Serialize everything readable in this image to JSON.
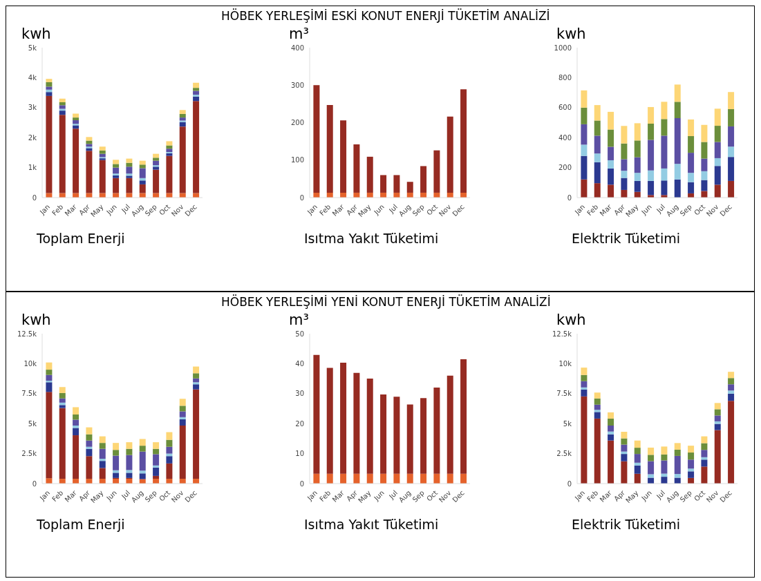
{
  "chart_data": [
    {
      "type": "bar",
      "ylabel": "kwh",
      "xlabel": "Toplam Enerji",
      "stacked": true,
      "categories": [
        "Jan",
        "Feb",
        "Mar",
        "Apr",
        "May",
        "Jun",
        "Jul",
        "Aug",
        "Sep",
        "Oct",
        "Nov",
        "Dec"
      ],
      "ylim": [
        0,
        5000
      ],
      "yticks": [
        0,
        {
          "value": 1000,
          "label": "1k"
        },
        {
          "value": 2000,
          "label": "2k"
        },
        {
          "value": 3000,
          "label": "3k"
        },
        {
          "value": 4000,
          "label": "4k"
        },
        {
          "value": 5000,
          "label": "5k"
        }
      ],
      "series": [
        {
          "color": "#e5622b",
          "values": [
            150,
            150,
            150,
            150,
            150,
            150,
            150,
            150,
            150,
            150,
            150,
            150
          ]
        },
        {
          "color": "#962b22",
          "values": [
            3240,
            2610,
            2150,
            1410,
            1100,
            500,
            500,
            290,
            780,
            1240,
            2220,
            3070
          ]
        },
        {
          "color": "#2b3990",
          "values": [
            130,
            140,
            110,
            90,
            60,
            90,
            80,
            130,
            100,
            90,
            150,
            150
          ]
        },
        {
          "color": "#93cce3",
          "values": [
            80,
            60,
            50,
            50,
            40,
            60,
            70,
            80,
            50,
            40,
            50,
            60
          ]
        },
        {
          "color": "#5b4fa3",
          "values": [
            100,
            120,
            120,
            90,
            110,
            200,
            230,
            330,
            150,
            110,
            100,
            130
          ]
        },
        {
          "color": "#6b8e3b",
          "values": [
            150,
            100,
            90,
            110,
            110,
            120,
            130,
            120,
            100,
            110,
            120,
            100
          ]
        },
        {
          "color": "#fdd676",
          "values": [
            110,
            120,
            130,
            120,
            130,
            140,
            140,
            130,
            130,
            140,
            130,
            170
          ]
        }
      ]
    },
    {
      "type": "bar",
      "title": "HÖBEK YERLEŞİMİ ESKİ KONUT ENERJİ TÜKETİM ANALİZİ",
      "ylabel": "m³",
      "xlabel": "Isıtma Yakıt Tüketimi",
      "stacked": true,
      "categories": [
        "Jan",
        "Feb",
        "Mar",
        "Apr",
        "May",
        "Jun",
        "Jul",
        "Aug",
        "Sep",
        "Oct",
        "Nov",
        "Dec"
      ],
      "ylim": [
        0,
        400
      ],
      "yticks": [
        0,
        100,
        200,
        300,
        400
      ],
      "series": [
        {
          "color": "#e5622b",
          "values": [
            13,
            13,
            13,
            13,
            13,
            13,
            13,
            13,
            13,
            13,
            13,
            13
          ]
        },
        {
          "color": "#962b22",
          "values": [
            287,
            234,
            193,
            129,
            96,
            47,
            47,
            29,
            71,
            113,
            203,
            276
          ]
        }
      ]
    },
    {
      "type": "bar",
      "ylabel": "kwh",
      "xlabel": "Elektrik Tüketimi",
      "stacked": true,
      "categories": [
        "Jan",
        "Feb",
        "Mar",
        "Apr",
        "May",
        "Jun",
        "Jul",
        "Aug",
        "Sep",
        "Oct",
        "Nov",
        "Dec"
      ],
      "ylim": [
        0,
        1000
      ],
      "yticks": [
        0,
        200,
        400,
        600,
        800,
        1000
      ],
      "series": [
        {
          "color": "#962b22",
          "values": [
            121,
            96,
            86,
            51,
            38,
            17,
            17,
            null,
            28,
            44,
            86,
            111
          ]
        },
        {
          "color": "#2b3990",
          "values": [
            157,
            140,
            108,
            80,
            73,
            94,
            97,
            121,
            75,
            73,
            125,
            160
          ]
        },
        {
          "color": "#93cce3",
          "values": [
            75,
            58,
            55,
            48,
            54,
            70,
            80,
            104,
            62,
            59,
            52,
            69
          ]
        },
        {
          "color": "#5b4fa3",
          "values": [
            136,
            119,
            90,
            77,
            104,
            204,
            219,
            305,
            134,
            84,
            108,
            135
          ]
        },
        {
          "color": "#6b8e3b",
          "values": [
            111,
            101,
            115,
            105,
            112,
            108,
            111,
            109,
            111,
            111,
            108,
            115
          ]
        },
        {
          "color": "#fdd676",
          "values": [
            115,
            103,
            118,
            117,
            115,
            111,
            115,
            115,
            111,
            114,
            114,
            114
          ]
        }
      ]
    },
    {
      "type": "bar",
      "ylabel": "kwh",
      "xlabel": "Toplam Enerji",
      "stacked": true,
      "categories": [
        "Jan",
        "Feb",
        "Mar",
        "Apr",
        "May",
        "Jun",
        "Jul",
        "Aug",
        "Sep",
        "Oct",
        "Nov",
        "Dec"
      ],
      "ylim": [
        0,
        12500
      ],
      "yticks": [
        0,
        {
          "value": 2500,
          "label": "2.5k"
        },
        {
          "value": 5000,
          "label": "5k"
        },
        {
          "value": 7500,
          "label": "7.5k"
        },
        {
          "value": 10000,
          "label": "10k"
        },
        {
          "value": 12500,
          "label": "12.5k"
        }
      ],
      "series": [
        {
          "color": "#e5622b",
          "values": [
            450,
            400,
            400,
            400,
            400,
            400,
            400,
            350,
            400,
            400,
            400,
            400
          ]
        },
        {
          "color": "#962b22",
          "values": [
            7190,
            5900,
            3630,
            1890,
            900,
            70,
            70,
            30,
            240,
            1280,
            4440,
            7450
          ]
        },
        {
          "color": "#2b3990",
          "values": [
            810,
            250,
            610,
            610,
            590,
            430,
            430,
            470,
            700,
            610,
            520,
            430
          ]
        },
        {
          "color": "#93cce3",
          "values": [
            130,
            200,
            200,
            170,
            180,
            210,
            230,
            230,
            170,
            210,
            180,
            170
          ]
        },
        {
          "color": "#5b4fa3",
          "values": [
            480,
            350,
            490,
            520,
            830,
            1220,
            1250,
            1590,
            940,
            570,
            480,
            320
          ]
        },
        {
          "color": "#6b8e3b",
          "values": [
            440,
            450,
            430,
            520,
            490,
            480,
            520,
            490,
            450,
            580,
            470,
            430
          ]
        },
        {
          "color": "#fdd676",
          "values": [
            600,
            500,
            610,
            580,
            550,
            580,
            550,
            560,
            550,
            640,
            580,
            560
          ]
        }
      ]
    },
    {
      "type": "bar",
      "title": "HÖBEK YERLEŞİMİ YENİ KONUT ENERJİ TÜKETİM ANALİZİ",
      "ylabel": "m³",
      "xlabel": "Isıtma Yakıt Tüketimi",
      "stacked": true,
      "categories": [
        "Jan",
        "Feb",
        "Mar",
        "Apr",
        "May",
        "Jun",
        "Jul",
        "Aug",
        "Sep",
        "Oct",
        "Nov",
        "Dec"
      ],
      "ylim": [
        0,
        50
      ],
      "yticks": [
        0,
        10,
        20,
        30,
        40,
        50
      ],
      "series": [
        {
          "color": "#e5622b",
          "values": [
            3.3,
            3.3,
            3.3,
            3.3,
            3.3,
            3.3,
            3.3,
            3.3,
            3.3,
            3.3,
            3.3,
            3.3
          ]
        },
        {
          "color": "#962b22",
          "values": [
            39.6,
            35.3,
            37.0,
            33.6,
            31.7,
            26.4,
            25.7,
            23.1,
            25.2,
            28.7,
            32.7,
            38.2
          ]
        }
      ]
    },
    {
      "type": "bar",
      "ylabel": "kwh",
      "xlabel": "Elektrik Tüketimi",
      "stacked": true,
      "categories": [
        "Jan",
        "Feb",
        "Mar",
        "Apr",
        "May",
        "Jun",
        "Jul",
        "Aug",
        "Sep",
        "Oct",
        "Nov",
        "Dec"
      ],
      "ylim": [
        0,
        12500
      ],
      "yticks": [
        0,
        {
          "value": 2500,
          "label": "2.5k"
        },
        {
          "value": 5000,
          "label": "5k"
        },
        {
          "value": 7500,
          "label": "7.5k"
        },
        {
          "value": 10000,
          "label": "10k"
        },
        {
          "value": 12500,
          "label": "12.5k"
        }
      ],
      "series": [
        {
          "color": "#962b22",
          "values": [
            7270,
            5420,
            3590,
            1860,
            820,
            null,
            null,
            null,
            470,
            1420,
            4460,
            6900
          ]
        },
        {
          "color": "#2b3990",
          "values": [
            580,
            550,
            520,
            610,
            690,
            490,
            570,
            490,
            550,
            580,
            520,
            600
          ]
        },
        {
          "color": "#93cce3",
          "values": [
            170,
            180,
            230,
            200,
            230,
            290,
            260,
            310,
            230,
            200,
            210,
            260
          ]
        },
        {
          "color": "#5b4fa3",
          "values": [
            520,
            430,
            500,
            580,
            730,
            1090,
            1100,
            1510,
            750,
            610,
            490,
            520
          ]
        },
        {
          "color": "#6b8e3b",
          "values": [
            520,
            520,
            580,
            520,
            520,
            530,
            500,
            520,
            590,
            560,
            520,
            520
          ]
        },
        {
          "color": "#fdd676",
          "values": [
            610,
            490,
            520,
            550,
            600,
            600,
            660,
            550,
            570,
            570,
            520,
            520
          ]
        }
      ]
    }
  ]
}
